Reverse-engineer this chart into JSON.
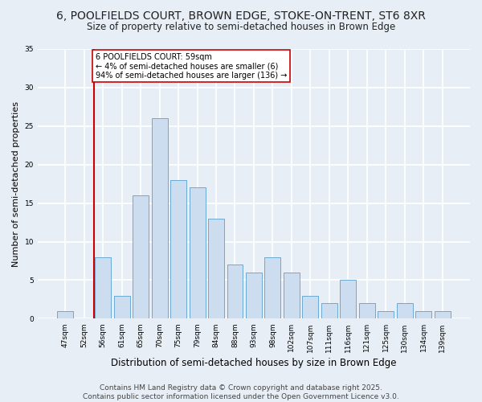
{
  "title1": "6, POOLFIELDS COURT, BROWN EDGE, STOKE-ON-TRENT, ST6 8XR",
  "title2": "Size of property relative to semi-detached houses in Brown Edge",
  "xlabel": "Distribution of semi-detached houses by size in Brown Edge",
  "ylabel": "Number of semi-detached properties",
  "categories": [
    "47sqm",
    "52sqm",
    "56sqm",
    "61sqm",
    "65sqm",
    "70sqm",
    "75sqm",
    "79sqm",
    "84sqm",
    "88sqm",
    "93sqm",
    "98sqm",
    "102sqm",
    "107sqm",
    "111sqm",
    "116sqm",
    "121sqm",
    "125sqm",
    "130sqm",
    "134sqm",
    "139sqm"
  ],
  "values": [
    1,
    0,
    8,
    3,
    16,
    26,
    18,
    17,
    13,
    7,
    6,
    8,
    6,
    3,
    2,
    5,
    2,
    1,
    2,
    1,
    1
  ],
  "bar_color": "#ccddef",
  "bar_edge_color": "#6aaad4",
  "annotation_text": "6 POOLFIELDS COURT: 59sqm\n← 4% of semi-detached houses are smaller (6)\n94% of semi-detached houses are larger (136) →",
  "annotation_box_color": "#ffffff",
  "annotation_box_edge_color": "#cc0000",
  "ylim": [
    0,
    35
  ],
  "yticks": [
    0,
    5,
    10,
    15,
    20,
    25,
    30,
    35
  ],
  "footer": "Contains HM Land Registry data © Crown copyright and database right 2025.\nContains public sector information licensed under the Open Government Licence v3.0.",
  "bg_color": "#e8eef5",
  "plot_bg_color": "#e8eef5",
  "grid_color": "#ffffff",
  "title_fontsize": 10,
  "subtitle_fontsize": 8.5,
  "tick_fontsize": 6.5,
  "ylabel_fontsize": 8,
  "xlabel_fontsize": 8.5,
  "footer_fontsize": 6.5,
  "annotation_fontsize": 7
}
